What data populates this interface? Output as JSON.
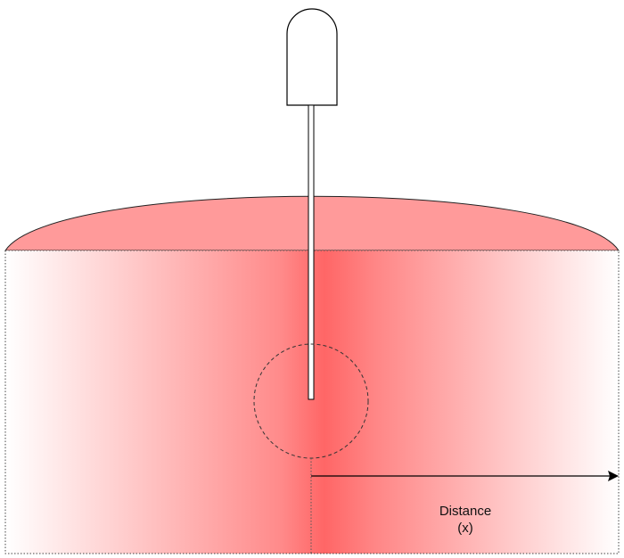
{
  "diagram": {
    "distance_label": {
      "line1": "Distance",
      "line2": "(x)"
    },
    "colors": {
      "slab_edge": "#ffffff",
      "slab_center": "#ff6666",
      "cap_fill": "#ff9999",
      "outline": "#000000"
    },
    "icons": [
      "probe-icon",
      "distance-arrow-icon"
    ]
  }
}
